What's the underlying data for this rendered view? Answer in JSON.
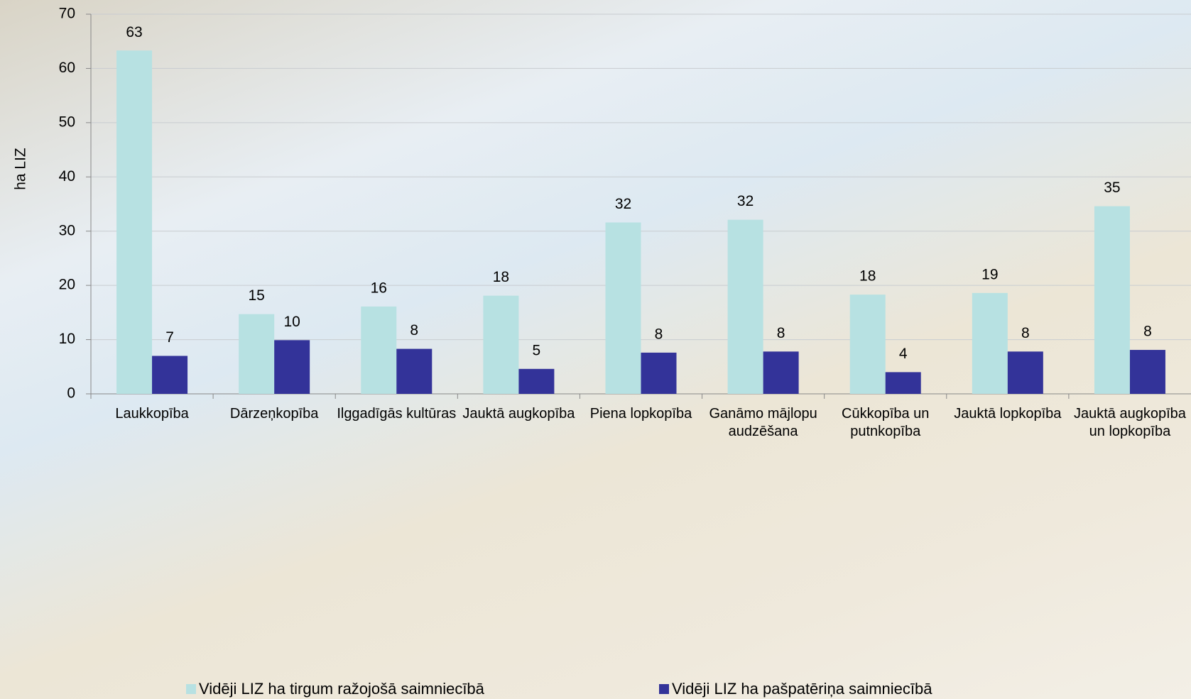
{
  "chart_data": {
    "type": "bar",
    "y_label": "ha LIZ",
    "categories": [
      "Laukkopība",
      "Dārzeņkopība",
      "Ilggadīgās kultūras",
      "Jauktā augkopība",
      "Piena lopkopība",
      "Ganāmo mājlopu audzēšana",
      "Cūkkopība un putnkopība",
      "Jauktā lopkopība",
      "Jauktā augkopība un lopkopība"
    ],
    "series": [
      {
        "name": "Vidēji LIZ ha tirgum ražojošā saimniecībā",
        "color": "#b7e1e2",
        "values": [
          63.3,
          14.7,
          16.1,
          18.1,
          31.6,
          32.1,
          18.3,
          18.6,
          34.6
        ],
        "value_labels": [
          "63",
          "15",
          "16",
          "18",
          "32",
          "32",
          "18",
          "19",
          "35"
        ]
      },
      {
        "name": "Vidēji LIZ ha pašpatēriņa saimniecībā",
        "color": "#333399",
        "values": [
          7,
          9.9,
          8.3,
          4.6,
          7.6,
          7.8,
          4.0,
          7.8,
          8.1
        ],
        "value_labels": [
          "7",
          "10",
          "8",
          "5",
          "8",
          "8",
          "4",
          "8",
          "8"
        ]
      }
    ],
    "ylim": [
      0,
      70
    ],
    "yticks": [
      0,
      10,
      20,
      30,
      40,
      50,
      60,
      70
    ],
    "grid": true
  }
}
